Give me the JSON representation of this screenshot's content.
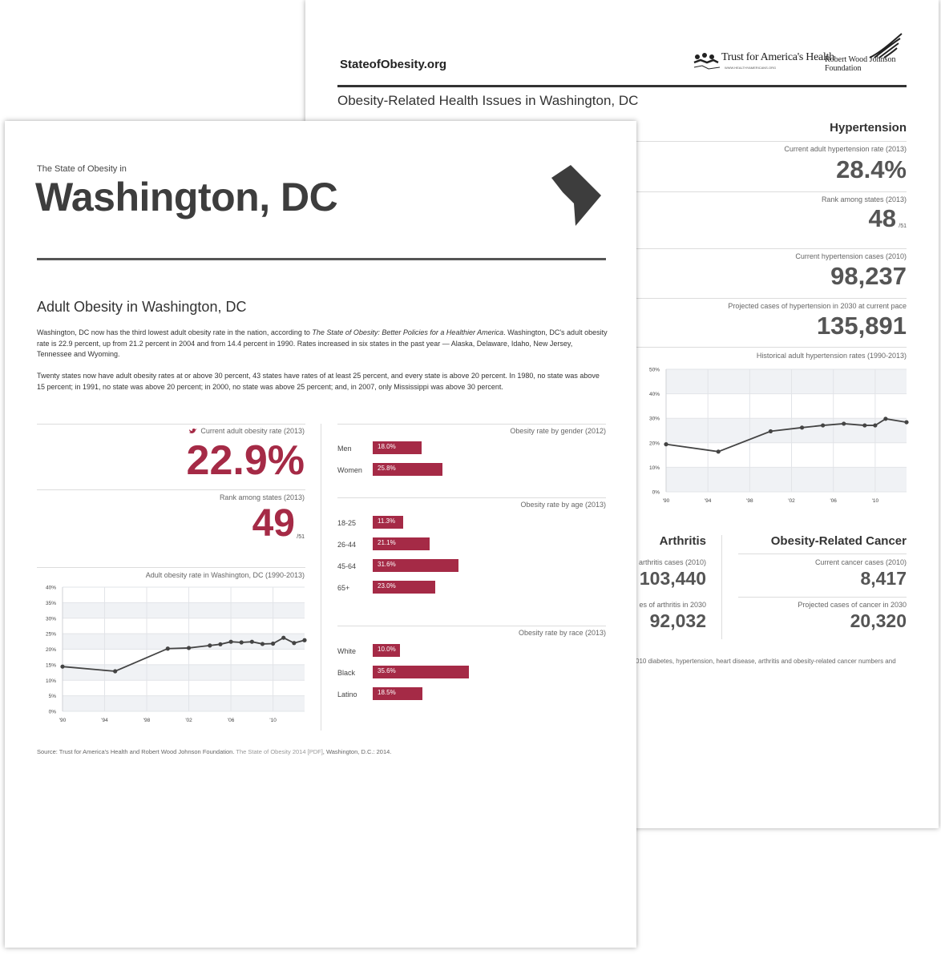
{
  "back_page": {
    "site": "StateofObesity.org",
    "logo_tfah": "Trust for America's Health",
    "logo_tfah_url": "WWW.HEALTHYAMERICANS.ORG",
    "logo_rwjf": "Robert Wood Johnson Foundation",
    "title": "Obesity-Related Health Issues in Washington, DC",
    "hypertension": {
      "heading": "Hypertension",
      "rate_label": "Current adult hypertension rate (2013)",
      "rate_value": "28.4%",
      "rank_label": "Rank among states (2013)",
      "rank_value": "48",
      "rank_of": "/51",
      "cases_label": "Current hypertension cases (2010)",
      "cases_value": "98,237",
      "projected_label": "Projected cases of hypertension in 2030 at current pace",
      "projected_value": "135,891",
      "chart_label": "Historical adult hypertension rates (1990-2013)"
    },
    "arthritis": {
      "heading": "Arthritis",
      "cases_label": "arthritis cases (2010)",
      "cases_value": "103,440",
      "projected_label": "es of arthritis in 2030",
      "projected_value": "92,032"
    },
    "cancer": {
      "heading": "Obesity-Related Cancer",
      "cases_label": "Current cancer cases (2010)",
      "cases_value": "8,417",
      "projected_label": "Projected cases of cancer in 2030",
      "projected_value": "20,320"
    },
    "footnote": "010 diabetes, hypertension, heart disease, arthritis and obesity-related cancer numbers and"
  },
  "front_page": {
    "kicker": "The State of Obesity in",
    "title": "Washington, DC",
    "section_title": "Adult Obesity in Washington, DC",
    "para1_a": "Washington, DC now has the third lowest adult obesity rate in the nation, according to ",
    "para1_italic": "The State of Obesity: Better Policies for a Healthier America",
    "para1_b": ". Washington, DC's adult obesity rate is 22.9 percent, up from 21.2 percent in 2004 and from 14.4 percent in 1990. Rates increased in six states in the past year — Alaska, Delaware, Idaho, New Jersey, Tennessee and Wyoming.",
    "para2": "Twenty states now have adult obesity rates at or above 30 percent, 43 states have rates of at least 25 percent, and every state is above 20 percent. In 1980, no state was above 15 percent; in 1991, no state was above 20 percent; in 2000, no state was above 25 percent; and, in 2007, only Mississippi was above 30 percent.",
    "rate_label": "Current adult obesity rate (2013)",
    "rate_value": "22.9%",
    "rank_label": "Rank among states (2013)",
    "rank_value": "49",
    "rank_of": "/51",
    "chart_label": "Adult obesity rate in Washington, DC (1990-2013)",
    "gender_label": "Obesity rate by gender (2012)",
    "age_label": "Obesity rate by age (2013)",
    "race_label": "Obesity rate by race (2013)",
    "source_a": "Source: Trust for America's Health and Robert Wood Johnson Foundation. ",
    "source_b": "The State of Obesity 2014 [PDF]",
    "source_c": ", Washington, D.C.: 2014."
  },
  "colors": {
    "accent": "#a52a46",
    "text": "#444444",
    "band": "#f0f2f5"
  },
  "chart_data": [
    {
      "type": "line",
      "title": "Adult obesity rate in Washington, DC (1990-2013)",
      "x": [
        1990,
        1995,
        2000,
        2002,
        2004,
        2005,
        2006,
        2007,
        2008,
        2009,
        2010,
        2011,
        2012,
        2013
      ],
      "y": [
        14.4,
        12.9,
        20.2,
        20.4,
        21.2,
        21.6,
        22.4,
        22.2,
        22.4,
        21.7,
        21.8,
        23.7,
        22.0,
        22.9
      ],
      "xticks": [
        "'90",
        "'94",
        "'98",
        "'02",
        "'06",
        "'10"
      ],
      "yticks": [
        "0%",
        "5%",
        "10%",
        "15%",
        "20%",
        "25%",
        "30%",
        "35%",
        "40%"
      ],
      "ylim": [
        0,
        40
      ],
      "xlim": [
        1990,
        2013
      ]
    },
    {
      "type": "line",
      "title": "Historical adult hypertension rates (1990-2013)",
      "x": [
        1990,
        1995,
        2000,
        2003,
        2005,
        2007,
        2009,
        2010,
        2011,
        2013
      ],
      "y": [
        19.4,
        16.4,
        24.7,
        26.2,
        27.1,
        27.8,
        27.1,
        27.1,
        29.8,
        28.4
      ],
      "xticks": [
        "'90",
        "'94",
        "'98",
        "'02",
        "'06",
        "'10"
      ],
      "yticks": [
        "0%",
        "10%",
        "20%",
        "30%",
        "40%",
        "50%"
      ],
      "ylim": [
        0,
        50
      ],
      "xlim": [
        1990,
        2013
      ]
    },
    {
      "type": "bar",
      "title": "Obesity rate by gender (2012)",
      "categories": [
        "Men",
        "Women"
      ],
      "values": [
        18.0,
        25.8
      ],
      "labels": [
        "18.0%",
        "25.8%"
      ]
    },
    {
      "type": "bar",
      "title": "Obesity rate by age (2013)",
      "categories": [
        "18-25",
        "26-44",
        "45-64",
        "65+"
      ],
      "values": [
        11.3,
        21.1,
        31.6,
        23.0
      ],
      "labels": [
        "11.3%",
        "21.1%",
        "31.6%",
        "23.0%"
      ]
    },
    {
      "type": "bar",
      "title": "Obesity rate by race (2013)",
      "categories": [
        "White",
        "Black",
        "Latino"
      ],
      "values": [
        10.0,
        35.6,
        18.5
      ],
      "labels": [
        "10.0%",
        "35.6%",
        "18.5%"
      ]
    }
  ]
}
